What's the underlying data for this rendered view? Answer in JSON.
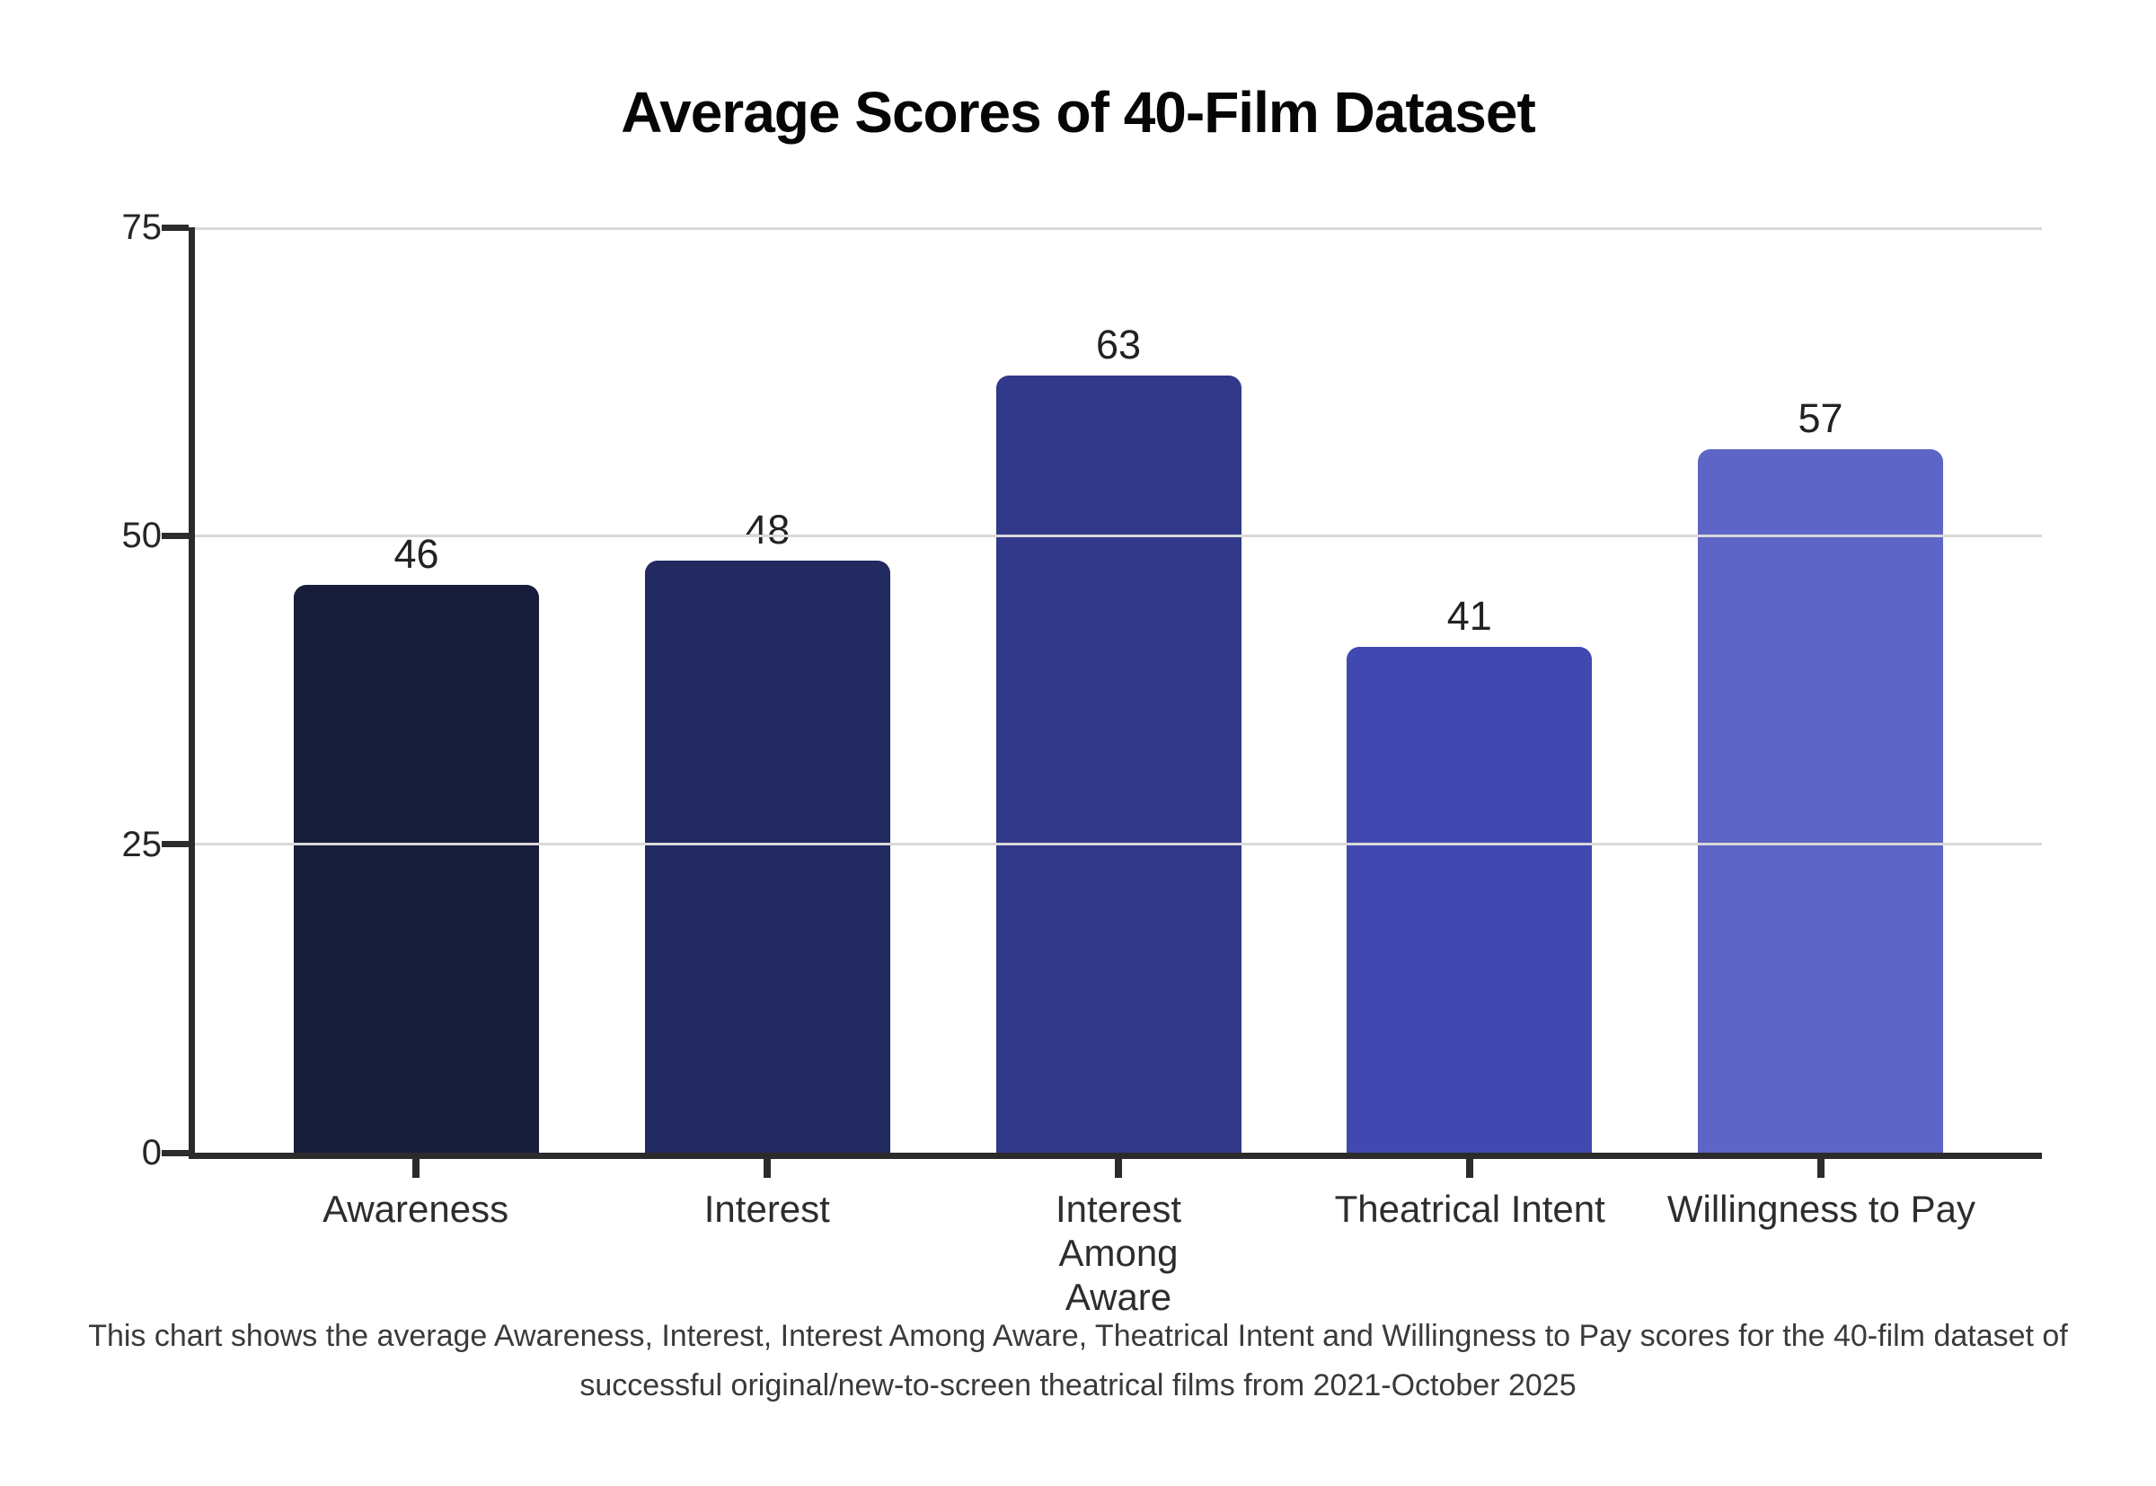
{
  "chart_data": {
    "type": "bar",
    "title": "Average Scores of 40-Film Dataset",
    "categories": [
      "Awareness",
      "Interest",
      "Interest Among Aware",
      "Theatrical Intent",
      "Willingness to Pay"
    ],
    "category_label_lines": [
      [
        "Awareness"
      ],
      [
        "Interest"
      ],
      [
        "Interest",
        "Among",
        "Aware"
      ],
      [
        "Theatrical Intent"
      ],
      [
        "Willingness to Pay"
      ]
    ],
    "values": [
      46,
      48,
      63,
      41,
      57
    ],
    "value_labels": [
      "46",
      "48",
      "63",
      "41",
      "57"
    ],
    "bar_colors": [
      "#171c3a",
      "#232961",
      "#32388a",
      "#4149b0",
      "#5d65c6"
    ],
    "xlabel": "",
    "ylabel": "",
    "ylim": [
      0,
      75
    ],
    "yticks": [
      0,
      25,
      50,
      75
    ],
    "ytick_labels": [
      "0",
      "25",
      "50",
      "75"
    ],
    "grid": "horizontal-at-25-50-75",
    "legend": "none"
  },
  "caption": {
    "lines": [
      "This chart shows the average Awareness, Interest, Interest Among Aware, Theatrical Intent and Willingness to Pay scores for the 40-film dataset of",
      "successful original/new-to-screen theatrical films from 2021-October 2025"
    ]
  },
  "colors": {
    "background": "#ffffff",
    "axis": "#2b2b2b",
    "gridline": "#d8d8d8",
    "tick_text": "#262626",
    "label_text": "#2d2d2d",
    "caption_text": "#3a3a3a",
    "title_text": "#060606"
  }
}
